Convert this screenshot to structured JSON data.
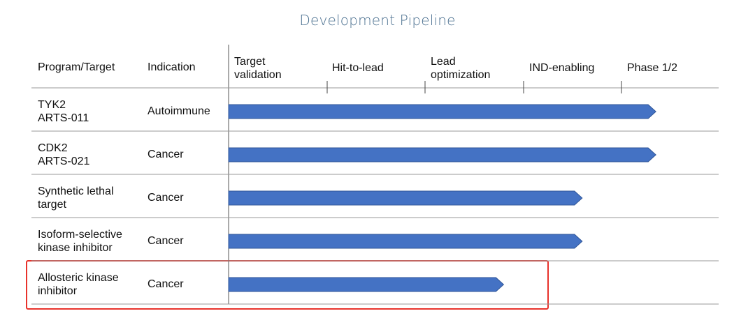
{
  "title": "Development Pipeline",
  "columns": {
    "program": "Program/Target",
    "indication": "Indication"
  },
  "chart_data": {
    "type": "bar",
    "orientation": "horizontal",
    "title": "Development Pipeline",
    "stages": [
      "Target validation",
      "Hit-to-lead",
      "Lead optimization",
      "IND-enabling",
      "Phase 1/2"
    ],
    "stage_labels": [
      [
        "Target",
        "validation"
      ],
      [
        "Hit-to-lead"
      ],
      [
        "Lead",
        "optimization"
      ],
      [
        "IND-enabling"
      ],
      [
        "Phase 1/2"
      ]
    ],
    "x_unit": "stage",
    "xlim": [
      0,
      5
    ],
    "programs": [
      {
        "name": [
          "TYK2",
          "ARTS-011"
        ],
        "indication": "Autoimmune",
        "progress": 4.35,
        "highlighted": false
      },
      {
        "name": [
          "CDK2",
          "ARTS-021"
        ],
        "indication": "Cancer",
        "progress": 4.35,
        "highlighted": false
      },
      {
        "name": [
          "Synthetic lethal",
          "target"
        ],
        "indication": "Cancer",
        "progress": 3.6,
        "highlighted": false
      },
      {
        "name": [
          "Isoform-selective",
          "kinase inhibitor"
        ],
        "indication": "Cancer",
        "progress": 3.6,
        "highlighted": false
      },
      {
        "name": [
          "Allosteric kinase",
          "inhibitor"
        ],
        "indication": "Cancer",
        "progress": 2.8,
        "highlighted": true
      }
    ]
  },
  "colors": {
    "bar": "#4472c4",
    "bar_edge": "#2f5597",
    "highlight": "#e8322b",
    "grid": "#9a9a9a",
    "title": "#4a6f8f"
  }
}
